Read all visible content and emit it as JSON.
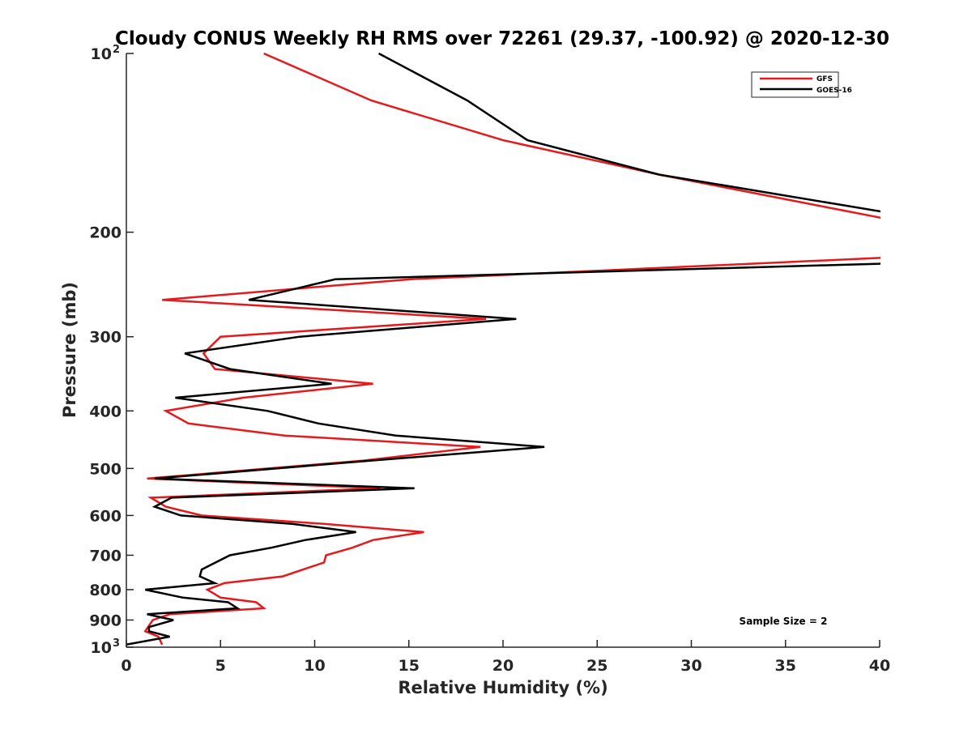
{
  "chart_data": {
    "type": "line",
    "title": "Cloudy CONUS Weekly RH RMS over 72261 (29.37, -100.92) @ 2020-12-30",
    "xlabel": "Relative Humidity (%)",
    "ylabel": "Pressure (mb)",
    "xlim": [
      0,
      40
    ],
    "ylim": [
      100,
      1000
    ],
    "yscale": "log",
    "yreversed": true,
    "grid": false,
    "legend_position": "top-right",
    "x_ticks": [
      0,
      5,
      10,
      15,
      20,
      25,
      30,
      35,
      40
    ],
    "x_tick_labels": [
      "0",
      "5",
      "10",
      "15",
      "20",
      "25",
      "30",
      "35",
      "40"
    ],
    "y_ticks": [
      100,
      200,
      300,
      400,
      500,
      600,
      700,
      800,
      900,
      1000
    ],
    "y_tick_labels": [
      {
        "base": "10",
        "sup": "2"
      },
      {
        "base": "200",
        "sup": ""
      },
      {
        "base": "300",
        "sup": ""
      },
      {
        "base": "400",
        "sup": ""
      },
      {
        "base": "500",
        "sup": ""
      },
      {
        "base": "600",
        "sup": ""
      },
      {
        "base": "700",
        "sup": ""
      },
      {
        "base": "800",
        "sup": ""
      },
      {
        "base": "900",
        "sup": ""
      },
      {
        "base": "10",
        "sup": "3"
      }
    ],
    "annotation": "Sample Size = 2",
    "series": [
      {
        "name": "GFS",
        "color": "#e41a1c",
        "pressure": [
          100,
          120,
          140,
          160,
          200,
          221,
          240,
          260,
          280,
          300,
          320,
          340,
          360,
          380,
          400,
          420,
          440,
          460,
          485,
          520,
          540,
          560,
          580,
          600,
          620,
          640,
          660,
          680,
          700,
          720,
          760,
          780,
          800,
          825,
          840,
          860,
          880,
          900,
          940,
          960,
          990
        ],
        "values": [
          7.3,
          13.0,
          20.0,
          28.3,
          44.0,
          40.0,
          15.1,
          1.9,
          19.1,
          5.0,
          4.1,
          4.7,
          13.1,
          6.2,
          2.1,
          3.3,
          8.4,
          18.8,
          12.6,
          1.1,
          13.5,
          1.3,
          2.1,
          4.0,
          10.5,
          15.8,
          13.1,
          12.0,
          10.6,
          10.5,
          8.3,
          5.2,
          4.3,
          5.0,
          6.9,
          7.3,
          2.3,
          1.4,
          1.0,
          1.7,
          1.9
        ]
      },
      {
        "name": "GOES-16",
        "color": "#000000",
        "pressure": [
          100,
          120,
          140,
          160,
          200,
          226,
          240,
          260,
          280,
          300,
          320,
          340,
          360,
          380,
          400,
          420,
          440,
          460,
          485,
          520,
          540,
          560,
          580,
          600,
          620,
          640,
          660,
          680,
          700,
          740,
          760,
          780,
          800,
          825,
          840,
          860,
          880,
          900,
          925,
          940,
          960,
          990
        ],
        "values": [
          13.4,
          18.1,
          21.3,
          28.3,
          46.7,
          40.0,
          11.1,
          6.5,
          20.7,
          9.2,
          3.1,
          5.5,
          10.9,
          2.6,
          7.5,
          10.2,
          14.3,
          22.2,
          13.0,
          1.5,
          15.3,
          2.4,
          1.5,
          2.9,
          8.8,
          12.2,
          9.5,
          7.7,
          5.5,
          4.0,
          3.9,
          4.7,
          1.0,
          3.0,
          5.4,
          5.9,
          1.1,
          2.5,
          1.2,
          1.2,
          2.3,
          0.0
        ]
      }
    ]
  }
}
